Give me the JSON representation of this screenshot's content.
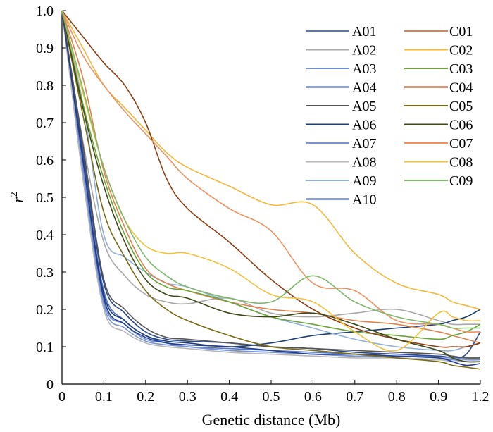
{
  "chart_data": {
    "type": "line",
    "xlabel": "Genetic distance (Mb)",
    "ylabel": "r",
    "ylabel_superscript": "2",
    "xlim": [
      0,
      1.2
    ],
    "ylim": [
      0,
      1.0
    ],
    "xticks": [
      "0",
      "0.1",
      "0.2",
      "0.3",
      "0.4",
      "0.5",
      "0.6",
      "0.7",
      "0.8",
      "0.9",
      "1.2"
    ],
    "xtick_values": [
      0,
      0.1,
      0.2,
      0.3,
      0.4,
      0.5,
      0.6,
      0.7,
      0.8,
      0.9,
      1.2
    ],
    "yticks": [
      "0",
      "0.1",
      "0.2",
      "0.3",
      "0.4",
      "0.5",
      "0.6",
      "0.7",
      "0.8",
      "0.9",
      "1.0"
    ],
    "ytick_values": [
      0,
      0.1,
      0.2,
      0.3,
      0.4,
      0.5,
      0.6,
      0.7,
      0.8,
      0.9,
      1.0
    ],
    "grid": false,
    "legend_position": "top-right",
    "series": [
      {
        "name": "A01",
        "color": "#5577C6",
        "x": [
          0,
          0.05,
          0.1,
          0.15,
          0.2,
          0.25,
          0.3,
          0.4,
          0.5,
          0.6,
          0.7,
          0.8,
          0.9,
          1.0,
          1.1,
          1.2
        ],
        "y": [
          1.0,
          0.6,
          0.25,
          0.17,
          0.13,
          0.11,
          0.1,
          0.095,
          0.09,
          0.085,
          0.08,
          0.075,
          0.075,
          0.07,
          0.07,
          0.07
        ]
      },
      {
        "name": "A02",
        "color": "#A8A8A8",
        "x": [
          0,
          0.05,
          0.1,
          0.15,
          0.2,
          0.25,
          0.3,
          0.4,
          0.5,
          0.6,
          0.7,
          0.8,
          0.9,
          1.0,
          1.1,
          1.2
        ],
        "y": [
          1.0,
          0.65,
          0.38,
          0.29,
          0.24,
          0.22,
          0.215,
          0.23,
          0.19,
          0.18,
          0.19,
          0.2,
          0.17,
          0.16,
          0.16,
          0.16
        ]
      },
      {
        "name": "A03",
        "color": "#6F8FD8",
        "x": [
          0,
          0.05,
          0.1,
          0.15,
          0.2,
          0.25,
          0.3,
          0.4,
          0.5,
          0.6,
          0.7,
          0.8,
          0.9,
          1.0,
          1.1,
          1.2
        ],
        "y": [
          1.0,
          0.58,
          0.22,
          0.16,
          0.12,
          0.11,
          0.1,
          0.09,
          0.085,
          0.08,
          0.075,
          0.07,
          0.065,
          0.065,
          0.06,
          0.06
        ]
      },
      {
        "name": "A04",
        "color": "#2E4A8F",
        "x": [
          0,
          0.05,
          0.1,
          0.15,
          0.2,
          0.25,
          0.3,
          0.4,
          0.5,
          0.6,
          0.7,
          0.8,
          0.9,
          1.0,
          1.1,
          1.2
        ],
        "y": [
          1.0,
          0.62,
          0.27,
          0.19,
          0.14,
          0.12,
          0.115,
          0.11,
          0.1,
          0.095,
          0.085,
          0.08,
          0.075,
          0.07,
          0.08,
          0.14
        ]
      },
      {
        "name": "A05",
        "color": "#555555",
        "x": [
          0,
          0.05,
          0.1,
          0.15,
          0.2,
          0.25,
          0.3,
          0.4,
          0.5,
          0.6,
          0.7,
          0.8,
          0.9,
          1.0,
          1.1,
          1.2
        ],
        "y": [
          1.0,
          0.64,
          0.28,
          0.2,
          0.15,
          0.125,
          0.12,
          0.11,
          0.1,
          0.095,
          0.09,
          0.085,
          0.08,
          0.075,
          0.07,
          0.07
        ]
      },
      {
        "name": "A06",
        "color": "#1F3F7A",
        "x": [
          0,
          0.05,
          0.1,
          0.15,
          0.2,
          0.25,
          0.3,
          0.4,
          0.5,
          0.6,
          0.7,
          0.8,
          0.9,
          1.0,
          1.1,
          1.2
        ],
        "y": [
          1.0,
          0.6,
          0.24,
          0.17,
          0.13,
          0.115,
          0.11,
          0.1,
          0.11,
          0.13,
          0.14,
          0.15,
          0.16,
          0.17,
          0.18,
          0.2
        ]
      },
      {
        "name": "A07",
        "color": "#7A93D6",
        "x": [
          0,
          0.05,
          0.1,
          0.15,
          0.2,
          0.25,
          0.3,
          0.4,
          0.5,
          0.6,
          0.7,
          0.8,
          0.9,
          1.0,
          1.1,
          1.2
        ],
        "y": [
          1.0,
          0.56,
          0.21,
          0.15,
          0.115,
          0.105,
          0.1,
          0.09,
          0.085,
          0.08,
          0.075,
          0.075,
          0.07,
          0.07,
          0.065,
          0.065
        ]
      },
      {
        "name": "A08",
        "color": "#B8B8B8",
        "x": [
          0,
          0.05,
          0.1,
          0.15,
          0.2,
          0.25,
          0.3,
          0.4,
          0.5,
          0.6,
          0.7,
          0.8,
          0.9,
          1.0,
          1.1,
          1.2
        ],
        "y": [
          1.0,
          0.55,
          0.2,
          0.14,
          0.11,
          0.1,
          0.095,
          0.085,
          0.08,
          0.075,
          0.07,
          0.07,
          0.065,
          0.06,
          0.06,
          0.06
        ]
      },
      {
        "name": "A09",
        "color": "#8FB0DE",
        "x": [
          0,
          0.05,
          0.1,
          0.15,
          0.2,
          0.25,
          0.3,
          0.4,
          0.5,
          0.6,
          0.7,
          0.8,
          0.9,
          1.0,
          1.1,
          1.2
        ],
        "y": [
          1.0,
          0.75,
          0.4,
          0.34,
          0.3,
          0.27,
          0.26,
          0.22,
          0.18,
          0.15,
          0.12,
          0.1,
          0.09,
          0.09,
          0.1,
          0.11
        ]
      },
      {
        "name": "A10",
        "color": "#233E8C",
        "x": [
          0,
          0.05,
          0.1,
          0.15,
          0.2,
          0.25,
          0.3,
          0.4,
          0.5,
          0.6,
          0.7,
          0.8,
          0.9,
          1.0,
          1.1,
          1.2
        ],
        "y": [
          1.0,
          0.6,
          0.23,
          0.16,
          0.125,
          0.11,
          0.105,
          0.1,
          0.09,
          0.08,
          0.08,
          0.075,
          0.07,
          0.06,
          0.05,
          0.055
        ]
      },
      {
        "name": "C01",
        "color": "#E0824E",
        "x": [
          0,
          0.05,
          0.1,
          0.15,
          0.2,
          0.25,
          0.3,
          0.4,
          0.5,
          0.6,
          0.7,
          0.8,
          0.9,
          1.0,
          1.1,
          1.2
        ],
        "y": [
          1.0,
          0.82,
          0.57,
          0.42,
          0.31,
          0.27,
          0.25,
          0.22,
          0.2,
          0.19,
          0.17,
          0.16,
          0.14,
          0.13,
          0.12,
          0.11
        ]
      },
      {
        "name": "C02",
        "color": "#F4B73A",
        "x": [
          0,
          0.05,
          0.1,
          0.15,
          0.2,
          0.25,
          0.3,
          0.4,
          0.5,
          0.6,
          0.7,
          0.8,
          0.9,
          1.0,
          1.1,
          1.2
        ],
        "y": [
          1.0,
          0.9,
          0.8,
          0.74,
          0.68,
          0.62,
          0.58,
          0.53,
          0.48,
          0.48,
          0.35,
          0.27,
          0.24,
          0.22,
          0.21,
          0.2
        ]
      },
      {
        "name": "C03",
        "color": "#6CA536",
        "x": [
          0,
          0.05,
          0.1,
          0.15,
          0.2,
          0.25,
          0.3,
          0.4,
          0.5,
          0.6,
          0.7,
          0.8,
          0.9,
          1.0,
          1.1,
          1.2
        ],
        "y": [
          1.0,
          0.75,
          0.55,
          0.4,
          0.3,
          0.26,
          0.25,
          0.22,
          0.18,
          0.16,
          0.14,
          0.13,
          0.12,
          0.13,
          0.14,
          0.16
        ]
      },
      {
        "name": "C04",
        "color": "#8E3E12",
        "x": [
          0,
          0.05,
          0.1,
          0.15,
          0.2,
          0.25,
          0.3,
          0.4,
          0.5,
          0.6,
          0.7,
          0.8,
          0.9,
          1.0,
          1.1,
          1.2
        ],
        "y": [
          1.0,
          0.93,
          0.86,
          0.8,
          0.7,
          0.55,
          0.47,
          0.38,
          0.28,
          0.2,
          0.15,
          0.12,
          0.1,
          0.1,
          0.1,
          0.11
        ]
      },
      {
        "name": "C05",
        "color": "#7A6A12",
        "x": [
          0,
          0.05,
          0.1,
          0.15,
          0.2,
          0.25,
          0.3,
          0.4,
          0.5,
          0.6,
          0.7,
          0.8,
          0.9,
          1.0,
          1.1,
          1.2
        ],
        "y": [
          1.0,
          0.72,
          0.46,
          0.34,
          0.25,
          0.2,
          0.17,
          0.13,
          0.1,
          0.09,
          0.08,
          0.07,
          0.06,
          0.05,
          0.045,
          0.04
        ]
      },
      {
        "name": "C06",
        "color": "#3E4A16",
        "x": [
          0,
          0.05,
          0.1,
          0.15,
          0.2,
          0.25,
          0.3,
          0.4,
          0.5,
          0.6,
          0.7,
          0.8,
          0.9,
          1.0,
          1.1,
          1.2
        ],
        "y": [
          1.0,
          0.74,
          0.53,
          0.38,
          0.28,
          0.24,
          0.23,
          0.19,
          0.18,
          0.19,
          0.16,
          0.12,
          0.09,
          0.07,
          0.06,
          0.06
        ]
      },
      {
        "name": "C07",
        "color": "#EE9160",
        "x": [
          0,
          0.05,
          0.1,
          0.15,
          0.2,
          0.25,
          0.3,
          0.4,
          0.5,
          0.6,
          0.7,
          0.8,
          0.9,
          1.0,
          1.1,
          1.2
        ],
        "y": [
          1.0,
          0.88,
          0.8,
          0.73,
          0.67,
          0.61,
          0.55,
          0.47,
          0.41,
          0.27,
          0.25,
          0.17,
          0.16,
          0.15,
          0.14,
          0.14
        ]
      },
      {
        "name": "C08",
        "color": "#F2C23D",
        "x": [
          0,
          0.05,
          0.1,
          0.15,
          0.2,
          0.25,
          0.3,
          0.4,
          0.5,
          0.6,
          0.7,
          0.8,
          0.9,
          1.0,
          1.1,
          1.2
        ],
        "y": [
          1.0,
          0.78,
          0.58,
          0.44,
          0.37,
          0.35,
          0.35,
          0.31,
          0.24,
          0.22,
          0.14,
          0.09,
          0.19,
          0.18,
          0.17,
          0.17
        ]
      },
      {
        "name": "C09",
        "color": "#7EB86A",
        "x": [
          0,
          0.05,
          0.1,
          0.15,
          0.2,
          0.25,
          0.3,
          0.4,
          0.5,
          0.6,
          0.7,
          0.8,
          0.9,
          1.0,
          1.1,
          1.2
        ],
        "y": [
          1.0,
          0.79,
          0.58,
          0.44,
          0.34,
          0.29,
          0.26,
          0.23,
          0.22,
          0.29,
          0.22,
          0.18,
          0.16,
          0.15,
          0.15,
          0.15
        ]
      }
    ]
  }
}
